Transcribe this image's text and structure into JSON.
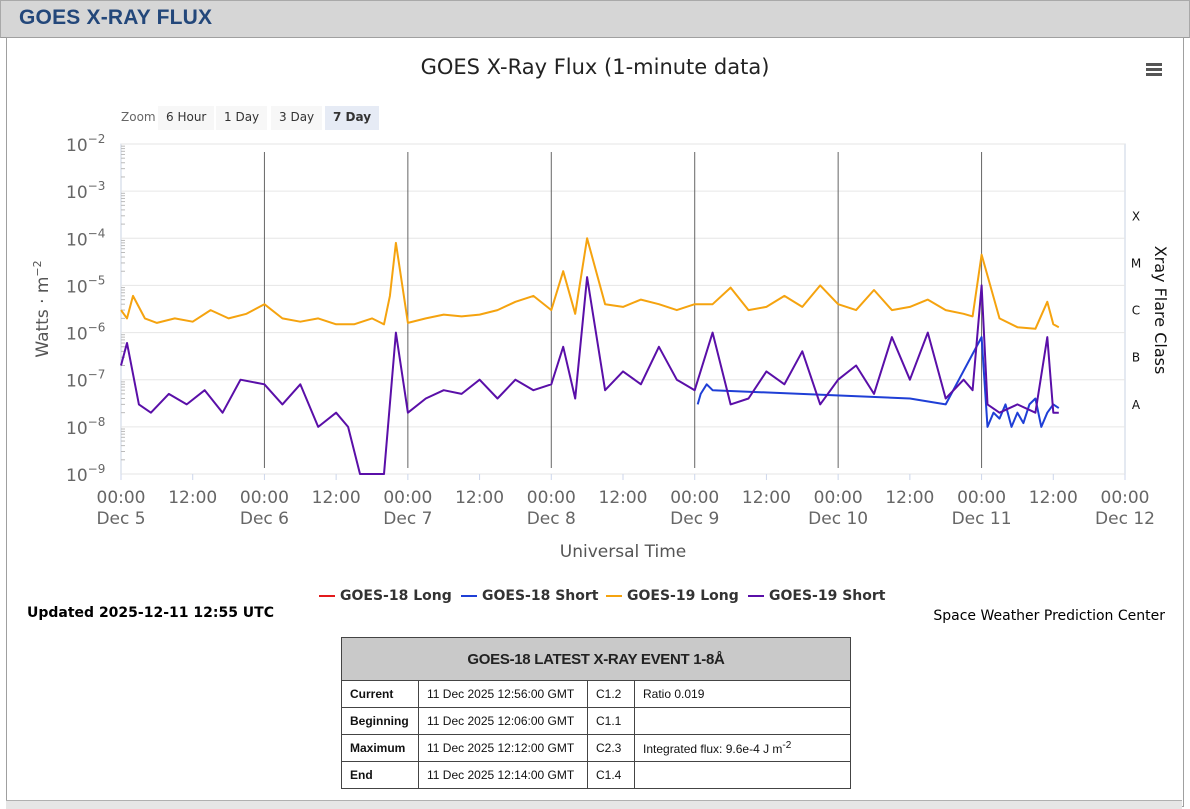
{
  "header": {
    "title": "GOES X-RAY FLUX"
  },
  "chart": {
    "title": "GOES X-Ray Flux (1-minute data)",
    "zoom_label": "Zoom",
    "zoom_buttons": [
      "6 Hour",
      "1 Day",
      "3 Day",
      "7 Day"
    ],
    "zoom_active": "7 Day",
    "updated": "Updated 2025-12-11 12:55 UTC",
    "credit": "Space Weather Prediction Center"
  },
  "chart_data": {
    "type": "line",
    "title": "GOES X-Ray Flux (1-minute data)",
    "xlabel": "Universal Time",
    "ylabel": "Watts · m",
    "ylabel_sup": "−2",
    "y2label": "Xray Flare Class",
    "yscale": "log",
    "ylim": [
      1e-09,
      0.01
    ],
    "xlim": [
      "2025-12-05 00:00",
      "2025-12-12 00:00"
    ],
    "y_ticks": [
      "10^-2",
      "10^-3",
      "10^-4",
      "10^-5",
      "10^-6",
      "10^-7",
      "10^-8",
      "10^-9"
    ],
    "y_tick_exponents": [
      "−2",
      "−3",
      "−4",
      "−5",
      "−6",
      "−7",
      "−8",
      "−9"
    ],
    "x_ticks": [
      {
        "time": "00:00",
        "date": "Dec 5"
      },
      {
        "time": "12:00",
        "date": ""
      },
      {
        "time": "00:00",
        "date": "Dec 6"
      },
      {
        "time": "12:00",
        "date": ""
      },
      {
        "time": "00:00",
        "date": "Dec 7"
      },
      {
        "time": "12:00",
        "date": ""
      },
      {
        "time": "00:00",
        "date": "Dec 8"
      },
      {
        "time": "12:00",
        "date": ""
      },
      {
        "time": "00:00",
        "date": "Dec 9"
      },
      {
        "time": "12:00",
        "date": ""
      },
      {
        "time": "00:00",
        "date": "Dec 10"
      },
      {
        "time": "12:00",
        "date": ""
      },
      {
        "time": "00:00",
        "date": "Dec 11"
      },
      {
        "time": "12:00",
        "date": ""
      },
      {
        "time": "00:00",
        "date": "Dec 12"
      }
    ],
    "flare_classes": [
      {
        "label": "X",
        "flux": 0.0001
      },
      {
        "label": "M",
        "flux": 1e-05
      },
      {
        "label": "C",
        "flux": 1e-06
      },
      {
        "label": "B",
        "flux": 1e-07
      },
      {
        "label": "A",
        "flux": 1e-08
      }
    ],
    "grid": true,
    "legend_position": "bottom",
    "series": [
      {
        "name": "GOES-18 Long",
        "color": "#e31a1c",
        "x": [],
        "y": []
      },
      {
        "name": "GOES-18 Short",
        "color": "#1f3fd6",
        "x": [
          "2025-12-09 00:30",
          "2025-12-09 01:00",
          "2025-12-09 02:00",
          "2025-12-09 03:00",
          "2025-12-10 12:00",
          "2025-12-10 18:00",
          "2025-12-11 00:00",
          "2025-12-11 01:00",
          "2025-12-11 02:00",
          "2025-12-11 03:00",
          "2025-12-11 04:00",
          "2025-12-11 05:00",
          "2025-12-11 06:00",
          "2025-12-11 07:00",
          "2025-12-11 08:00",
          "2025-12-11 09:00",
          "2025-12-11 10:00",
          "2025-12-11 11:00",
          "2025-12-11 12:00",
          "2025-12-11 12:55"
        ],
        "y": [
          3e-08,
          5e-08,
          8e-08,
          6e-08,
          4e-08,
          3e-08,
          8e-07,
          1e-08,
          2e-08,
          1.5e-08,
          3e-08,
          1e-08,
          2e-08,
          1.2e-08,
          3e-08,
          4e-08,
          1e-08,
          2e-08,
          3e-08,
          2.5e-08
        ]
      },
      {
        "name": "GOES-19 Long",
        "color": "#f5a30f",
        "x": [
          "2025-12-05 00:00",
          "2025-12-05 01:00",
          "2025-12-05 02:00",
          "2025-12-05 04:00",
          "2025-12-05 06:00",
          "2025-12-05 09:00",
          "2025-12-05 12:00",
          "2025-12-05 15:00",
          "2025-12-05 18:00",
          "2025-12-05 21:00",
          "2025-12-06 00:00",
          "2025-12-06 03:00",
          "2025-12-06 06:00",
          "2025-12-06 09:00",
          "2025-12-06 12:00",
          "2025-12-06 15:00",
          "2025-12-06 18:00",
          "2025-12-06 20:00",
          "2025-12-06 21:00",
          "2025-12-06 22:00",
          "2025-12-07 00:00",
          "2025-12-07 03:00",
          "2025-12-07 06:00",
          "2025-12-07 09:00",
          "2025-12-07 12:00",
          "2025-12-07 15:00",
          "2025-12-07 18:00",
          "2025-12-07 21:00",
          "2025-12-08 00:00",
          "2025-12-08 02:00",
          "2025-12-08 04:00",
          "2025-12-08 06:00",
          "2025-12-08 09:00",
          "2025-12-08 12:00",
          "2025-12-08 15:00",
          "2025-12-08 18:00",
          "2025-12-08 21:00",
          "2025-12-09 00:00",
          "2025-12-09 03:00",
          "2025-12-09 06:00",
          "2025-12-09 09:00",
          "2025-12-09 12:00",
          "2025-12-09 15:00",
          "2025-12-09 18:00",
          "2025-12-09 21:00",
          "2025-12-10 00:00",
          "2025-12-10 03:00",
          "2025-12-10 06:00",
          "2025-12-10 09:00",
          "2025-12-10 12:00",
          "2025-12-10 15:00",
          "2025-12-10 18:00",
          "2025-12-10 21:00",
          "2025-12-10 22:30",
          "2025-12-11 00:00",
          "2025-12-11 03:00",
          "2025-12-11 06:00",
          "2025-12-11 09:00",
          "2025-12-11 11:00",
          "2025-12-11 12:00",
          "2025-12-11 12:55"
        ],
        "y": [
          3e-06,
          2e-06,
          6e-06,
          2e-06,
          1.6e-06,
          2e-06,
          1.7e-06,
          3e-06,
          2e-06,
          2.5e-06,
          4e-06,
          2e-06,
          1.7e-06,
          2e-06,
          1.5e-06,
          1.5e-06,
          2e-06,
          1.5e-06,
          6e-06,
          8e-05,
          1.6e-06,
          2e-06,
          2.4e-06,
          2.2e-06,
          2.4e-06,
          3e-06,
          4.5e-06,
          6e-06,
          3e-06,
          2e-05,
          2.5e-06,
          0.0001,
          4e-06,
          3.5e-06,
          5e-06,
          4e-06,
          3e-06,
          4e-06,
          4e-06,
          9e-06,
          3e-06,
          3.5e-06,
          6e-06,
          3.5e-06,
          1e-05,
          4e-06,
          3e-06,
          8e-06,
          3e-06,
          3.5e-06,
          5e-06,
          3e-06,
          2.5e-06,
          2.2e-06,
          4.5e-05,
          2e-06,
          1.3e-06,
          1.2e-06,
          4.5e-06,
          1.5e-06,
          1.3e-06
        ]
      },
      {
        "name": "GOES-19 Short",
        "color": "#5a0fa8",
        "x": [
          "2025-12-05 00:00",
          "2025-12-05 01:00",
          "2025-12-05 03:00",
          "2025-12-05 05:00",
          "2025-12-05 08:00",
          "2025-12-05 11:00",
          "2025-12-05 14:00",
          "2025-12-05 17:00",
          "2025-12-05 20:00",
          "2025-12-06 00:00",
          "2025-12-06 03:00",
          "2025-12-06 06:00",
          "2025-12-06 09:00",
          "2025-12-06 12:00",
          "2025-12-06 14:00",
          "2025-12-06 16:00",
          "2025-12-06 18:00",
          "2025-12-06 20:00",
          "2025-12-06 22:00",
          "2025-12-07 00:00",
          "2025-12-07 03:00",
          "2025-12-07 06:00",
          "2025-12-07 09:00",
          "2025-12-07 12:00",
          "2025-12-07 15:00",
          "2025-12-07 18:00",
          "2025-12-07 21:00",
          "2025-12-08 00:00",
          "2025-12-08 02:00",
          "2025-12-08 04:00",
          "2025-12-08 06:00",
          "2025-12-08 09:00",
          "2025-12-08 12:00",
          "2025-12-08 15:00",
          "2025-12-08 18:00",
          "2025-12-08 21:00",
          "2025-12-09 00:00",
          "2025-12-09 03:00",
          "2025-12-09 06:00",
          "2025-12-09 09:00",
          "2025-12-09 12:00",
          "2025-12-09 15:00",
          "2025-12-09 18:00",
          "2025-12-09 21:00",
          "2025-12-10 00:00",
          "2025-12-10 03:00",
          "2025-12-10 06:00",
          "2025-12-10 09:00",
          "2025-12-10 12:00",
          "2025-12-10 15:00",
          "2025-12-10 18:00",
          "2025-12-10 21:00",
          "2025-12-10 22:30",
          "2025-12-11 00:00",
          "2025-12-11 01:00",
          "2025-12-11 03:00",
          "2025-12-11 06:00",
          "2025-12-11 09:00",
          "2025-12-11 11:00",
          "2025-12-11 12:00",
          "2025-12-11 12:55"
        ],
        "y": [
          2e-07,
          6e-07,
          3e-08,
          2e-08,
          5e-08,
          3e-08,
          6e-08,
          2e-08,
          1e-07,
          8e-08,
          3e-08,
          8e-08,
          1e-08,
          2e-08,
          1e-08,
          1e-09,
          1e-09,
          1e-09,
          1e-06,
          2e-08,
          4e-08,
          6e-08,
          5e-08,
          1e-07,
          4e-08,
          1e-07,
          6e-08,
          8e-08,
          5e-07,
          4e-08,
          1.5e-05,
          6e-08,
          1.5e-07,
          8e-08,
          5e-07,
          1e-07,
          6e-08,
          1e-06,
          3e-08,
          4e-08,
          1.5e-07,
          8e-08,
          4e-07,
          3e-08,
          1e-07,
          2e-07,
          5e-08,
          8e-07,
          1e-07,
          1e-06,
          4e-08,
          1e-07,
          6e-08,
          1e-05,
          3e-08,
          2e-08,
          3e-08,
          2e-08,
          8e-07,
          2e-08,
          2e-08
        ]
      }
    ]
  },
  "table": {
    "title": "GOES-18 LATEST X-RAY EVENT 1-8Å",
    "rows": [
      {
        "label": "Current",
        "time": "11 Dec 2025 12:56:00 GMT",
        "class": "C1.2",
        "note": "Ratio 0.019",
        "note_sup": ""
      },
      {
        "label": "Beginning",
        "time": "11 Dec 2025 12:06:00 GMT",
        "class": "C1.1",
        "note": "",
        "note_sup": ""
      },
      {
        "label": "Maximum",
        "time": "11 Dec 2025 12:12:00 GMT",
        "class": "C2.3",
        "note": "Integrated flux: 9.6e-4 J m",
        "note_sup": "-2"
      },
      {
        "label": "End",
        "time": "11 Dec 2025 12:14:00 GMT",
        "class": "C1.4",
        "note": "",
        "note_sup": ""
      }
    ]
  }
}
